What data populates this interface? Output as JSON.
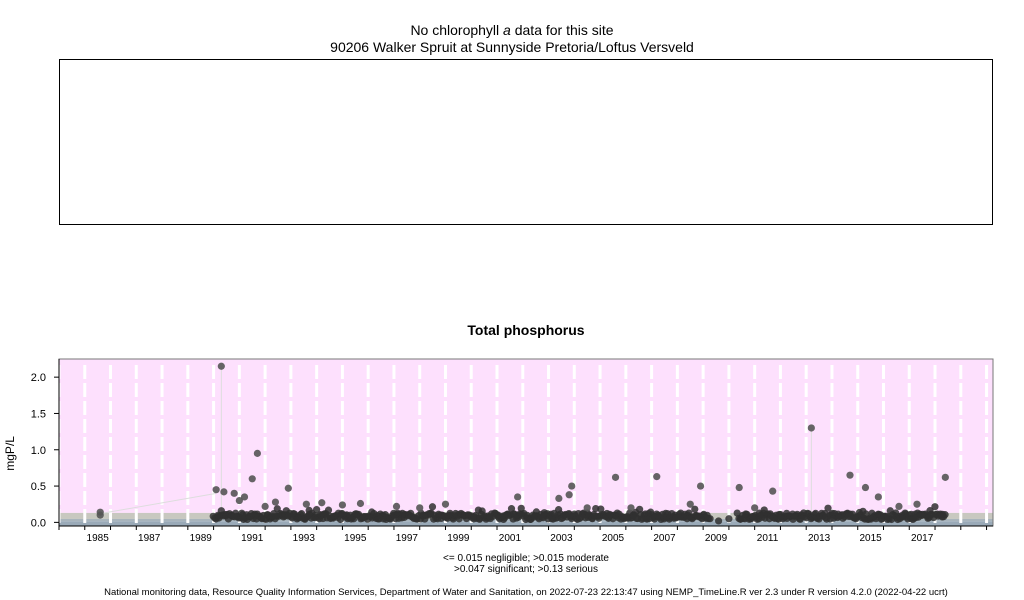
{
  "chlorophyll_panel": {
    "title_prefix": "No chlorophyll ",
    "title_italic": "a",
    "title_suffix": " data for this site",
    "site": "90206 Walker Spruit at Sunnyside Pretoria/Loftus Versveld"
  },
  "legend": {
    "line1": "<= 0.015 negligible; >0.015 moderate",
    "line2": ">0.047 significant; >0.13 serious"
  },
  "footer": "National monitoring data, Resource Quality Information Services, Department of Water and Sanitation, on 2022-07-23 22:13:47 using NEMP_TimeLine.R ver 2.3 under R version 4.2.0 (2022-04-22 ucrt)",
  "colors": {
    "serious_band": "#fde0fd",
    "significant_band": "#c8c8c0",
    "moderate_band": "#a8b4bc",
    "negligible_band": "#9aaab8",
    "points": "#303030"
  },
  "chart_data": {
    "type": "scatter",
    "title": "Total phosphorus",
    "xlabel": "",
    "ylabel": "mgP/L",
    "xlim": [
      1984.0,
      2020.25
    ],
    "ylim": [
      -0.05,
      2.25
    ],
    "x_ticks": [
      "1985",
      "1987",
      "1989",
      "1991",
      "1993",
      "1995",
      "1997",
      "1999",
      "2001",
      "2003",
      "2005",
      "2007",
      "2009",
      "2011",
      "2013",
      "2015",
      "2017"
    ],
    "y_ticks": [
      "0.0",
      "0.5",
      "1.0",
      "1.5",
      "2.0"
    ],
    "thresholds": {
      "negligible": 0.015,
      "moderate": 0.015,
      "significant": 0.047,
      "serious": 0.13
    },
    "grid": "vertical dashed lines at year boundaries",
    "series": [
      {
        "outliers": [
          {
            "x": 1985.6,
            "y": 0.14
          },
          {
            "x": 1985.6,
            "y": 0.1
          },
          {
            "x": 1990.1,
            "y": 0.45
          },
          {
            "x": 1990.3,
            "y": 2.15
          },
          {
            "x": 1990.4,
            "y": 0.42
          },
          {
            "x": 1990.8,
            "y": 0.4
          },
          {
            "x": 1991.0,
            "y": 0.3
          },
          {
            "x": 1991.2,
            "y": 0.35
          },
          {
            "x": 1991.5,
            "y": 0.6
          },
          {
            "x": 1991.7,
            "y": 0.95
          },
          {
            "x": 1992.0,
            "y": 0.22
          },
          {
            "x": 1992.4,
            "y": 0.28
          },
          {
            "x": 1992.9,
            "y": 0.47
          },
          {
            "x": 1993.6,
            "y": 0.25
          },
          {
            "x": 1994.2,
            "y": 0.27
          },
          {
            "x": 1995.0,
            "y": 0.24
          },
          {
            "x": 1995.7,
            "y": 0.26
          },
          {
            "x": 1997.1,
            "y": 0.22
          },
          {
            "x": 1998.0,
            "y": 0.2
          },
          {
            "x": 1999.0,
            "y": 0.25
          },
          {
            "x": 2001.8,
            "y": 0.35
          },
          {
            "x": 2003.4,
            "y": 0.33
          },
          {
            "x": 2003.9,
            "y": 0.5
          },
          {
            "x": 2003.8,
            "y": 0.38
          },
          {
            "x": 2004.5,
            "y": 0.2
          },
          {
            "x": 2005.6,
            "y": 0.62
          },
          {
            "x": 2006.2,
            "y": 0.2
          },
          {
            "x": 2007.2,
            "y": 0.63
          },
          {
            "x": 2008.9,
            "y": 0.5
          },
          {
            "x": 2008.5,
            "y": 0.25
          },
          {
            "x": 2010.4,
            "y": 0.48
          },
          {
            "x": 2011.0,
            "y": 0.2
          },
          {
            "x": 2011.7,
            "y": 0.43
          },
          {
            "x": 2013.2,
            "y": 1.3
          },
          {
            "x": 2014.7,
            "y": 0.65
          },
          {
            "x": 2015.3,
            "y": 0.48
          },
          {
            "x": 2015.8,
            "y": 0.35
          },
          {
            "x": 2016.6,
            "y": 0.22
          },
          {
            "x": 2017.3,
            "y": 0.25
          },
          {
            "x": 2018.4,
            "y": 0.62
          }
        ],
        "baseline": {
          "x_start": 1990.0,
          "x_end": 2018.4,
          "y_typical": 0.08,
          "gap": [
            2009.3,
            2010.3
          ]
        }
      }
    ]
  }
}
